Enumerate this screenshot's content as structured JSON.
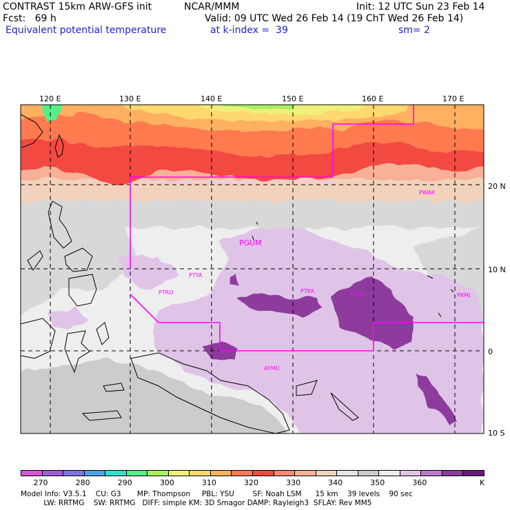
{
  "header": {
    "line1_left": "CONTRAST 15km ARW-GFS init",
    "line1_mid": "NCAR/MMM",
    "line1_right": "Init: 12 UTC Sun 23 Feb 14",
    "line2_left": "Fcst:   69 h",
    "line2_right": "Valid: 09 UTC Wed 26 Feb 14 (19 ChT Wed 26 Feb 14)",
    "line3_left": "Equivalent potential temperature",
    "line3_mid": "at k-index =  39",
    "line3_right": "sm= 2"
  },
  "lon_labels": [
    "120 E",
    "130 E",
    "140 E",
    "150 E",
    "160 E",
    "170 E"
  ],
  "lat_labels": [
    "20 N",
    "10 N",
    "0",
    "10 S"
  ],
  "stations": [
    "PWAK",
    "PGUM",
    "PTYA",
    "PTRO",
    "PTKK",
    "PTPN",
    "PKMJ",
    "AYMO"
  ],
  "colorbar": {
    "labels": [
      "270",
      "280",
      "290",
      "300",
      "310",
      "320",
      "330",
      "340",
      "350",
      "360",
      "K"
    ],
    "colors": [
      "#d955d9",
      "#a05cd8",
      "#7a76e0",
      "#4aa3e8",
      "#36e0c8",
      "#55ee88",
      "#a8f060",
      "#eef07a",
      "#ffd870",
      "#ffb060",
      "#ff7a50",
      "#f24a40",
      "#f78a70",
      "#f8b098",
      "#f2d2bc",
      "#e6e6e6",
      "#cccccc",
      "#eeeeee",
      "#e0c4e8",
      "#b87ac8",
      "#8e3a9e",
      "#6a1a7e"
    ]
  },
  "footer": {
    "line1": "Model Info: V3.5.1    CU: G3       MP: Thompson     PBL: YSU        SF: Noah LSM      15 km    39 levels    90 sec",
    "line2": "          LW: RRTMG    SW: RRTMG   DIFF: simple KM: 3D Smagor DAMP: Rayleigh3  SFLAY: Rev MM5"
  }
}
